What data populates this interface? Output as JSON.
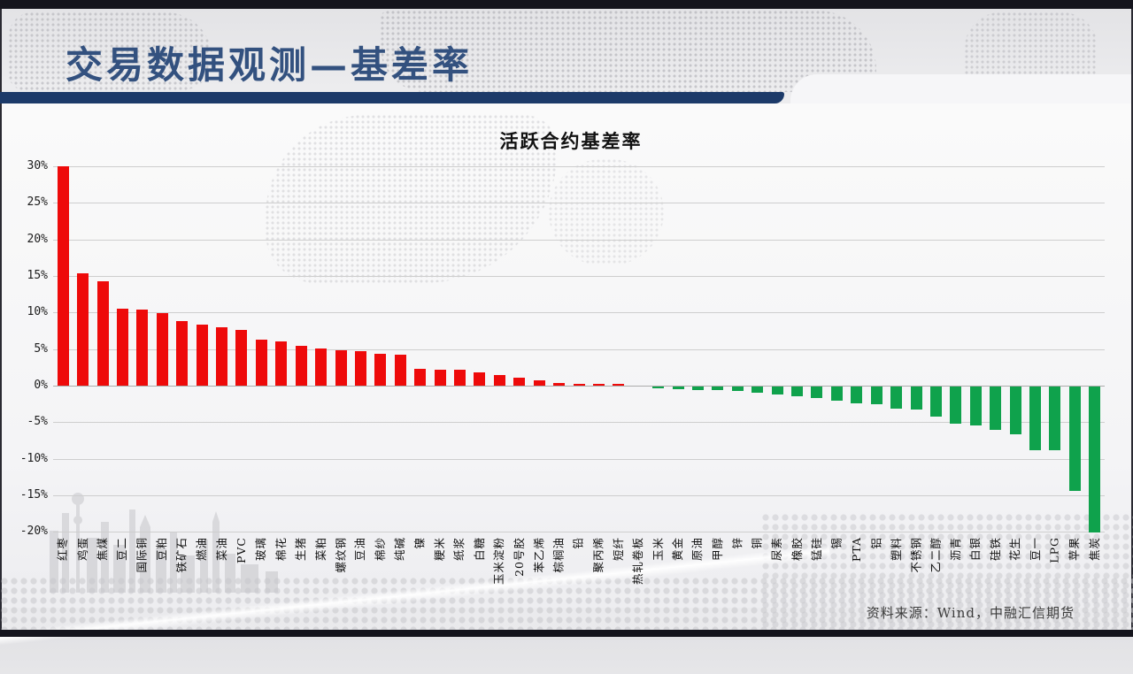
{
  "slide": {
    "header_title": "交易数据观测—基差率",
    "source_note": "资料来源：Wind，中融汇信期货"
  },
  "chart_data": {
    "type": "bar",
    "title": "活跃合约基差率",
    "categories": [
      "红枣",
      "鸡蛋",
      "焦煤",
      "豆二",
      "国际铜",
      "豆粕",
      "铁矿石",
      "燃油",
      "菜油",
      "PVC",
      "玻璃",
      "棉花",
      "生猪",
      "菜粕",
      "螺纹钢",
      "豆油",
      "棉纱",
      "纯碱",
      "镍",
      "粳米",
      "纸浆",
      "白糖",
      "玉米淀粉",
      "20号胶",
      "苯乙烯",
      "棕榈油",
      "铅",
      "聚丙烯",
      "短纤",
      "热轧卷板",
      "玉米",
      "黄金",
      "原油",
      "甲醇",
      "锌",
      "铜",
      "尿素",
      "橡胶",
      "锰硅",
      "锡",
      "PTA",
      "铝",
      "塑料",
      "不锈钢",
      "乙二醇",
      "沥青",
      "白银",
      "硅铁",
      "花生",
      "豆一",
      "LPG",
      "苹果",
      "焦炭"
    ],
    "values": [
      30.0,
      15.3,
      14.3,
      10.5,
      10.4,
      9.9,
      8.8,
      8.4,
      8.0,
      7.6,
      6.3,
      6.1,
      5.5,
      5.1,
      4.8,
      4.7,
      4.4,
      4.2,
      2.3,
      2.2,
      2.2,
      1.8,
      1.5,
      1.1,
      0.7,
      0.4,
      0.3,
      0.2,
      0.2,
      0.0,
      -0.3,
      -0.4,
      -0.5,
      -0.5,
      -0.6,
      -0.8,
      -1.1,
      -1.3,
      -1.6,
      -1.9,
      -2.3,
      -2.4,
      -3.0,
      -3.2,
      -4.1,
      -5.1,
      -5.3,
      -5.9,
      -6.5,
      -8.7,
      -8.7,
      -14.3,
      -20.0
    ],
    "xlabel": "",
    "ylabel": "",
    "ylim": [
      -20,
      30
    ],
    "ytick_step": 5,
    "ytick_labels": [
      "30%",
      "25%",
      "20%",
      "15%",
      "10%",
      "5%",
      "0%",
      "-5%",
      "-10%",
      "-15%",
      "-20%"
    ],
    "grid": true,
    "legend": "none",
    "positive_color": "#ee0a0a",
    "negative_color": "#0fa24c"
  }
}
